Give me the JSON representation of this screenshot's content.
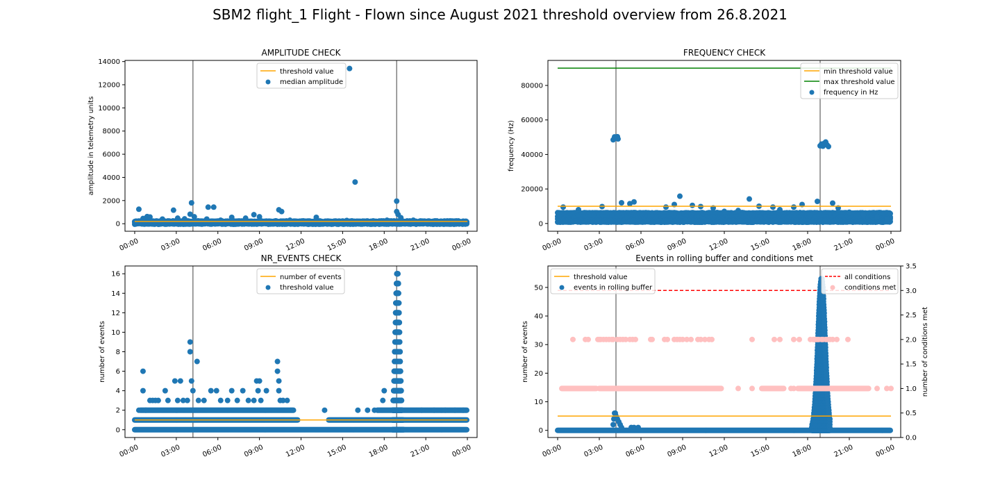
{
  "figure": {
    "suptitle": "SBM2 flight_1 Flight - Flown since August 2021 threshold overview from 26.8.2021",
    "time_tick_labels": [
      "00:00",
      "03:00",
      "06:00",
      "09:00",
      "12:00",
      "15:00",
      "18:00",
      "21:00",
      "00:00"
    ]
  },
  "colors": {
    "points": "#1f77b4",
    "threshold": "#ffa500",
    "max_threshold": "#008000",
    "vline": "#808080",
    "conditions_line": "#ff0000",
    "conditions_points": "#ffc0c0"
  },
  "chart_data": [
    {
      "id": "amplitude",
      "type": "scatter",
      "title": "AMPLITUDE CHECK",
      "ylabel": "amplitude in telemetry units",
      "xlabel": "",
      "x_unit": "hours since 00:00",
      "xlim": [
        -0.7,
        24.7
      ],
      "ylim": [
        -650,
        14100
      ],
      "yticks": [
        0,
        2000,
        4000,
        6000,
        8000,
        10000,
        12000,
        14000
      ],
      "grid": false,
      "legend_position": "top-center",
      "vlines": [
        4.2,
        18.9
      ],
      "lines": [
        {
          "name": "threshold value",
          "color": "orange",
          "x": [
            0,
            24
          ],
          "y": [
            200,
            200
          ]
        }
      ],
      "series": [
        {
          "name": "median amplitude",
          "color": "blue",
          "points": [
            [
              0.3,
              1250
            ],
            [
              0.6,
              450
            ],
            [
              0.9,
              620
            ],
            [
              1.1,
              580
            ],
            [
              2.0,
              400
            ],
            [
              2.8,
              1170
            ],
            [
              3.1,
              480
            ],
            [
              3.6,
              420
            ],
            [
              4.0,
              820
            ],
            [
              4.1,
              1800
            ],
            [
              4.3,
              600
            ],
            [
              5.2,
              400
            ],
            [
              5.3,
              1430
            ],
            [
              5.7,
              1430
            ],
            [
              6.2,
              300
            ],
            [
              7.0,
              550
            ],
            [
              8.0,
              480
            ],
            [
              8.6,
              780
            ],
            [
              9.0,
              600
            ],
            [
              10.4,
              1200
            ],
            [
              10.6,
              1050
            ],
            [
              11.2,
              300
            ],
            [
              13.1,
              550
            ],
            [
              14.0,
              200
            ],
            [
              15.3,
              280
            ],
            [
              15.5,
              13400
            ],
            [
              15.9,
              3600
            ],
            [
              17.0,
              200
            ],
            [
              18.2,
              300
            ],
            [
              18.9,
              1950
            ],
            [
              18.9,
              1050
            ],
            [
              19.0,
              800
            ],
            [
              19.2,
              520
            ],
            [
              20.1,
              300
            ],
            [
              21.0,
              200
            ],
            [
              22.0,
              180
            ],
            [
              23.0,
              150
            ],
            [
              23.8,
              120
            ]
          ],
          "baseline": {
            "x_start": 0,
            "x_end": 24,
            "values": [
              0,
              100,
              200
            ]
          }
        }
      ]
    },
    {
      "id": "frequency",
      "type": "scatter",
      "title": "FREQUENCY CHECK",
      "ylabel": "frequency (Hz)",
      "xlabel": "",
      "x_unit": "hours since 00:00",
      "xlim": [
        -0.7,
        24.7
      ],
      "ylim": [
        -4500,
        94500
      ],
      "yticks": [
        0,
        20000,
        40000,
        60000,
        80000
      ],
      "grid": false,
      "legend_position": "top-right",
      "vlines": [
        4.2,
        18.9
      ],
      "lines": [
        {
          "name": "min threshold value",
          "color": "orange",
          "x": [
            0,
            24
          ],
          "y": [
            10000,
            10000
          ]
        },
        {
          "name": "max threshold value",
          "color": "green",
          "x": [
            0,
            24
          ],
          "y": [
            90000,
            90000
          ]
        }
      ],
      "series": [
        {
          "name": "frequency in Hz",
          "color": "blue",
          "points": [
            [
              4.0,
              48500
            ],
            [
              4.1,
              50200
            ],
            [
              4.2,
              49500
            ],
            [
              4.3,
              50300
            ],
            [
              4.35,
              49000
            ],
            [
              18.9,
              45000
            ],
            [
              19.0,
              46000
            ],
            [
              19.1,
              44800
            ],
            [
              19.2,
              46500
            ],
            [
              19.3,
              47200
            ],
            [
              19.4,
              45500
            ],
            [
              19.5,
              44600
            ],
            [
              0.4,
              9500
            ],
            [
              1.5,
              8000
            ],
            [
              3.2,
              9800
            ],
            [
              4.6,
              12000
            ],
            [
              5.2,
              11500
            ],
            [
              5.5,
              12500
            ],
            [
              7.8,
              9500
            ],
            [
              8.4,
              11000
            ],
            [
              8.8,
              15800
            ],
            [
              9.7,
              10500
            ],
            [
              10.3,
              9800
            ],
            [
              11.2,
              9000
            ],
            [
              12.0,
              7000
            ],
            [
              13.0,
              7500
            ],
            [
              13.8,
              14200
            ],
            [
              14.5,
              10000
            ],
            [
              15.5,
              9500
            ],
            [
              16.0,
              8000
            ],
            [
              17.0,
              9500
            ],
            [
              17.6,
              11000
            ],
            [
              18.7,
              12800
            ],
            [
              19.8,
              11800
            ],
            [
              20.2,
              9000
            ],
            [
              21.0,
              6500
            ],
            [
              22.0,
              5500
            ],
            [
              23.0,
              4000
            ],
            [
              23.7,
              2500
            ]
          ],
          "baseline": {
            "x_start": 0,
            "x_end": 24,
            "values": [
              1000,
              2500,
              4000,
              6000
            ]
          }
        }
      ]
    },
    {
      "id": "nr_events",
      "type": "scatter",
      "title": "NR_EVENTS CHECK",
      "ylabel": "number of events",
      "xlabel": "",
      "x_unit": "hours since 00:00",
      "xlim": [
        -0.7,
        24.7
      ],
      "ylim": [
        -0.8,
        16.8
      ],
      "yticks": [
        0,
        2,
        4,
        6,
        8,
        10,
        12,
        14,
        16
      ],
      "grid": false,
      "legend_position": "top-center",
      "vlines": [
        4.2,
        18.9
      ],
      "lines": [
        {
          "name": "number of events",
          "color": "orange",
          "x": [
            0,
            24
          ],
          "y": [
            1,
            1
          ]
        }
      ],
      "series": [
        {
          "name": "threshold value",
          "color": "blue",
          "points": [
            [
              0.6,
              6
            ],
            [
              0.6,
              4
            ],
            [
              0.3,
              2
            ],
            [
              0.8,
              2
            ],
            [
              1.1,
              3
            ],
            [
              1.3,
              3
            ],
            [
              1.5,
              3
            ],
            [
              1.7,
              3
            ],
            [
              2.2,
              4
            ],
            [
              2.4,
              3
            ],
            [
              2.9,
              5
            ],
            [
              3.1,
              3
            ],
            [
              3.3,
              5
            ],
            [
              3.5,
              3
            ],
            [
              3.8,
              3
            ],
            [
              4.0,
              9
            ],
            [
              4.0,
              8
            ],
            [
              4.1,
              5
            ],
            [
              4.2,
              4
            ],
            [
              4.5,
              7
            ],
            [
              4.6,
              3
            ],
            [
              5.0,
              3
            ],
            [
              5.5,
              4
            ],
            [
              5.9,
              4
            ],
            [
              6.2,
              3
            ],
            [
              6.7,
              3
            ],
            [
              7.0,
              4
            ],
            [
              7.4,
              3
            ],
            [
              7.8,
              4
            ],
            [
              8.2,
              3
            ],
            [
              8.6,
              3
            ],
            [
              8.8,
              5
            ],
            [
              8.9,
              4
            ],
            [
              9.0,
              5
            ],
            [
              9.1,
              3
            ],
            [
              9.5,
              4
            ],
            [
              10.3,
              7
            ],
            [
              10.3,
              6
            ],
            [
              10.4,
              5
            ],
            [
              10.4,
              4
            ],
            [
              10.5,
              3
            ],
            [
              10.7,
              3
            ],
            [
              11.0,
              3
            ],
            [
              13.7,
              2
            ],
            [
              16.1,
              2
            ],
            [
              16.8,
              2
            ],
            [
              17.3,
              2
            ],
            [
              17.9,
              3
            ],
            [
              18.0,
              4
            ],
            [
              20.7,
              2
            ],
            [
              21.6,
              2
            ],
            [
              22.4,
              2
            ],
            [
              23.1,
              2
            ],
            [
              23.7,
              2
            ]
          ],
          "dense_bands": [
            {
              "x_start": 0,
              "x_end": 24,
              "y": 0
            },
            {
              "x_start": 0,
              "x_end": 11.8,
              "y": 1
            },
            {
              "x_start": 14.0,
              "x_end": 24,
              "y": 1
            },
            {
              "x_start": 0.4,
              "x_end": 11.5,
              "y": 2
            },
            {
              "x_start": 17.5,
              "x_end": 24,
              "y": 2
            }
          ],
          "spikes": [
            {
              "x_start": 18.6,
              "x_end": 19.4,
              "peak_x": 18.95,
              "max": 16
            }
          ]
        }
      ]
    },
    {
      "id": "rolling_buffer",
      "type": "scatter",
      "title": "Events in rolling buffer and conditions met",
      "ylabel": "number of events",
      "y2label": "number of conditions met",
      "xlabel": "",
      "x_unit": "hours since 00:00",
      "xlim": [
        -0.7,
        24.7
      ],
      "ylim": [
        -2.5,
        57.5
      ],
      "yticks": [
        0,
        10,
        20,
        30,
        40,
        50
      ],
      "y2lim": [
        0,
        3.5
      ],
      "y2ticks": [
        "0.0",
        "0.5",
        "1.0",
        "1.5",
        "2.0",
        "2.5",
        "3.0",
        "3.5"
      ],
      "grid": false,
      "legend_position": "top-left",
      "legend2_position": "top-right",
      "vlines": [
        4.2,
        18.9
      ],
      "lines": [
        {
          "name": "threshold value",
          "color": "orange",
          "x": [
            0,
            24
          ],
          "y": [
            5,
            5
          ]
        }
      ],
      "y2_lines": [
        {
          "name": "all conditions",
          "color": "red",
          "dashed": true,
          "x": [
            0,
            24
          ],
          "y": [
            3,
            3
          ]
        }
      ],
      "series": [
        {
          "name": "events in rolling buffer",
          "color": "blue",
          "points": [
            [
              4.0,
              2
            ],
            [
              4.05,
              4
            ],
            [
              4.1,
              6
            ],
            [
              4.15,
              6
            ],
            [
              4.2,
              5
            ],
            [
              4.3,
              4
            ],
            [
              4.4,
              3
            ],
            [
              4.5,
              2
            ],
            [
              4.6,
              1
            ],
            [
              5.3,
              1
            ],
            [
              5.5,
              1
            ],
            [
              5.8,
              1
            ]
          ],
          "dense_bands": [
            {
              "x_start": 0,
              "x_end": 24,
              "y": 0
            }
          ],
          "spikes": [
            {
              "x_start": 18.3,
              "x_end": 19.6,
              "peak_x": 19.0,
              "max": 53
            }
          ]
        },
        {
          "name": "conditions met",
          "axis": "y2",
          "color": "pink",
          "points_y2_2": [
            1.1,
            2.0,
            2.2,
            2.9,
            3.0,
            3.1,
            3.3,
            3.5,
            3.7,
            3.9,
            4.0,
            4.3,
            4.5,
            4.7,
            4.9,
            5.2,
            5.4,
            5.6,
            6.7,
            6.8,
            7.7,
            7.9,
            8.4,
            8.6,
            8.8,
            9.0,
            9.3,
            9.6,
            10.1,
            10.3,
            10.6,
            10.9,
            11.1,
            14.0,
            15.6,
            16.0,
            17.0,
            17.4,
            18.2,
            18.4,
            18.5,
            18.6,
            18.7,
            18.8,
            19.0,
            19.1,
            19.3,
            19.4,
            19.6,
            19.8,
            20.1,
            20.9
          ],
          "band_y2_1": [
            {
              "x_start": 0.3,
              "x_end": 2.8
            },
            {
              "x_start": 3.0,
              "x_end": 11.8
            },
            {
              "x_start": 14.7,
              "x_end": 16.3
            },
            {
              "x_start": 17.3,
              "x_end": 22.4
            }
          ],
          "points_y2_1": [
            13.0,
            14.0,
            16.8,
            17.0,
            23.0,
            23.7,
            24.0
          ]
        }
      ]
    }
  ]
}
